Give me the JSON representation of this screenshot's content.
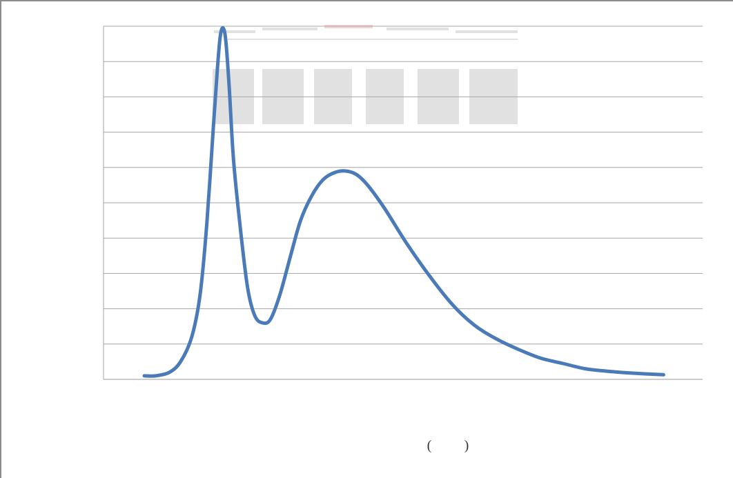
{
  "chart_data": {
    "type": "line",
    "title": "",
    "xlabel": "",
    "ylabel": "",
    "xlabel_open": "(",
    "xlabel_close": ")",
    "grid": true,
    "gridline_count": 11,
    "xlim": [
      0,
      1000
    ],
    "ylim": [
      0,
      100
    ],
    "series": [
      {
        "color": "#4a7ab8",
        "points": [
          [
            0,
            1
          ],
          [
            20,
            1
          ],
          [
            45,
            2
          ],
          [
            65,
            5
          ],
          [
            85,
            12
          ],
          [
            100,
            24
          ],
          [
            112,
            44
          ],
          [
            124,
            72
          ],
          [
            131,
            88
          ],
          [
            136,
            97
          ],
          [
            141,
            99.5
          ],
          [
            146,
            96
          ],
          [
            152,
            83
          ],
          [
            160,
            62
          ],
          [
            172,
            43
          ],
          [
            185,
            26
          ],
          [
            198,
            18
          ],
          [
            212,
            16
          ],
          [
            226,
            17
          ],
          [
            243,
            24
          ],
          [
            262,
            35
          ],
          [
            280,
            45
          ],
          [
            300,
            52
          ],
          [
            320,
            56.5
          ],
          [
            340,
            58.5
          ],
          [
            360,
            59
          ],
          [
            380,
            58
          ],
          [
            400,
            55
          ],
          [
            430,
            48.5
          ],
          [
            470,
            38.5
          ],
          [
            510,
            29.5
          ],
          [
            550,
            21.5
          ],
          [
            590,
            15.5
          ],
          [
            630,
            11.5
          ],
          [
            670,
            8.5
          ],
          [
            710,
            6
          ],
          [
            750,
            4.5
          ],
          [
            790,
            3
          ],
          [
            830,
            2.3
          ],
          [
            870,
            1.8
          ],
          [
            930,
            1.3
          ]
        ]
      }
    ]
  },
  "watermark": {
    "color": "#c8c8c8"
  }
}
